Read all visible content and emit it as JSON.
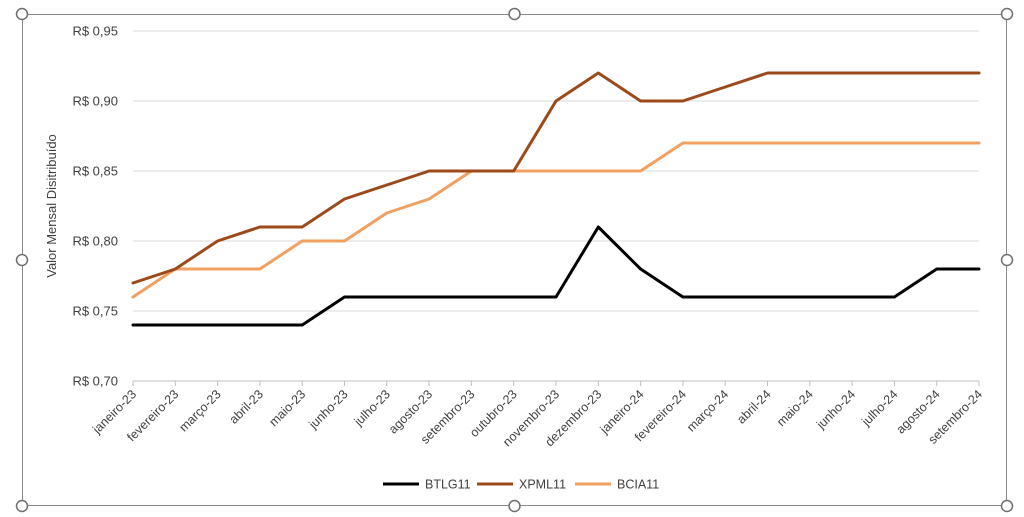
{
  "chart_data": {
    "type": "line",
    "ylabel": "Valor Mensal Disitribuído",
    "xlabel": "",
    "ylim": [
      0.7,
      0.95
    ],
    "y_ticks": [
      0.7,
      0.75,
      0.8,
      0.85,
      0.9,
      0.95
    ],
    "y_tick_labels": [
      "R$ 0,70",
      "R$ 0,75",
      "R$ 0,80",
      "R$ 0,85",
      "R$ 0,90",
      "R$ 0,95"
    ],
    "grid": true,
    "legend_position": "bottom",
    "categories": [
      "janeiro-23",
      "fevereiro-23",
      "março-23",
      "abril-23",
      "maio-23",
      "junho-23",
      "julho-23",
      "agosto-23",
      "setembro-23",
      "outubro-23",
      "novembro-23",
      "dezembro-23",
      "janeiro-24",
      "fevereiro-24",
      "março-24",
      "abril-24",
      "maio-24",
      "junho-24",
      "julho-24",
      "agosto-24",
      "setembro-24"
    ],
    "series": [
      {
        "name": "BTLG11",
        "color": "#000000",
        "values": [
          0.74,
          0.74,
          0.74,
          0.74,
          0.74,
          0.76,
          0.76,
          0.76,
          0.76,
          0.76,
          0.76,
          0.81,
          0.78,
          0.76,
          0.76,
          0.76,
          0.76,
          0.76,
          0.76,
          0.78,
          0.78
        ]
      },
      {
        "name": "XPML11",
        "color": "#9C4A1A",
        "values": [
          0.77,
          0.78,
          0.8,
          0.81,
          0.81,
          0.83,
          0.84,
          0.85,
          0.85,
          0.85,
          0.9,
          0.92,
          0.9,
          0.9,
          0.91,
          0.92,
          0.92,
          0.92,
          0.92,
          0.92,
          0.92
        ]
      },
      {
        "name": "BCIA11",
        "color": "#F0A060",
        "values": [
          0.76,
          0.78,
          0.78,
          0.78,
          0.8,
          0.8,
          0.82,
          0.83,
          0.85,
          0.85,
          0.85,
          0.85,
          0.85,
          0.87,
          0.87,
          0.87,
          0.87,
          0.87,
          0.87,
          0.87,
          0.87
        ]
      }
    ]
  }
}
